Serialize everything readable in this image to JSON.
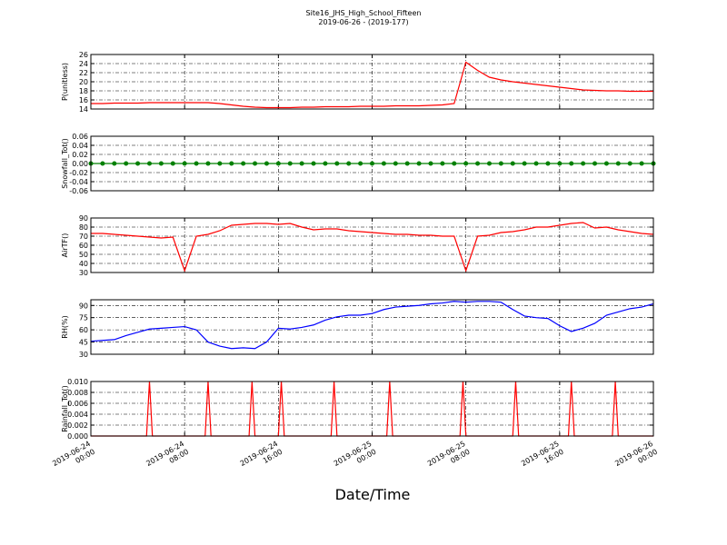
{
  "title": "Site16_JHS_High_School_Fifteen",
  "subtitle": "2019-06-26 - (2019-177)",
  "xlabel": "Date/Time",
  "x_axis": {
    "xlim": [
      "2019-06-24 00:00",
      "2019-06-26 00:00"
    ],
    "xticks": [
      {
        "value": "2019-06-24 00:00",
        "label": [
          "2019-06-24",
          "00:00"
        ]
      },
      {
        "value": "2019-06-24 08:00",
        "label": [
          "2019-06-24",
          "08:00"
        ]
      },
      {
        "value": "2019-06-24 16:00",
        "label": [
          "2019-06-24",
          "16:00"
        ]
      },
      {
        "value": "2019-06-25 00:00",
        "label": [
          "2019-06-25",
          "00:00"
        ]
      },
      {
        "value": "2019-06-25 08:00",
        "label": [
          "2019-06-25",
          "08:00"
        ]
      },
      {
        "value": "2019-06-25 16:00",
        "label": [
          "2019-06-25",
          "16:00"
        ]
      },
      {
        "value": "2019-06-26 00:00",
        "label": [
          "2019-06-26",
          "00:00"
        ]
      }
    ],
    "grid": true
  },
  "chart_data": [
    {
      "type": "line",
      "ylabel": "P(unitless)",
      "color": "#ff0000",
      "grid": true,
      "ylim": [
        14,
        26
      ],
      "yticks": [
        14,
        16,
        18,
        20,
        22,
        24,
        26
      ],
      "x": [
        "2019-06-24 00:00",
        "2019-06-24 01:00",
        "2019-06-24 02:00",
        "2019-06-24 03:00",
        "2019-06-24 04:00",
        "2019-06-24 05:00",
        "2019-06-24 06:00",
        "2019-06-24 07:00",
        "2019-06-24 08:00",
        "2019-06-24 09:00",
        "2019-06-24 10:00",
        "2019-06-24 11:00",
        "2019-06-24 12:00",
        "2019-06-24 13:00",
        "2019-06-24 14:00",
        "2019-06-24 15:00",
        "2019-06-24 16:00",
        "2019-06-24 17:00",
        "2019-06-24 18:00",
        "2019-06-24 19:00",
        "2019-06-24 20:00",
        "2019-06-24 21:00",
        "2019-06-24 22:00",
        "2019-06-24 23:00",
        "2019-06-25 00:00",
        "2019-06-25 01:00",
        "2019-06-25 02:00",
        "2019-06-25 03:00",
        "2019-06-25 04:00",
        "2019-06-25 05:00",
        "2019-06-25 06:00",
        "2019-06-25 07:00",
        "2019-06-25 08:00",
        "2019-06-25 09:00",
        "2019-06-25 10:00",
        "2019-06-25 11:00",
        "2019-06-25 12:00",
        "2019-06-25 13:00",
        "2019-06-25 14:00",
        "2019-06-25 15:00",
        "2019-06-25 16:00",
        "2019-06-25 17:00",
        "2019-06-25 18:00",
        "2019-06-25 19:00",
        "2019-06-25 20:00",
        "2019-06-25 21:00",
        "2019-06-25 22:00",
        "2019-06-25 23:00",
        "2019-06-26 00:00"
      ],
      "values": [
        15.2,
        15.2,
        15.3,
        15.3,
        15.3,
        15.4,
        15.4,
        15.4,
        15.4,
        15.4,
        15.4,
        15.2,
        14.9,
        14.6,
        14.4,
        14.3,
        14.3,
        14.3,
        14.4,
        14.4,
        14.5,
        14.5,
        14.5,
        14.6,
        14.6,
        14.6,
        14.7,
        14.7,
        14.7,
        14.8,
        14.9,
        15.2,
        24.3,
        22.5,
        21.0,
        20.4,
        20.0,
        19.7,
        19.4,
        19.1,
        18.8,
        18.5,
        18.2,
        18.1,
        18.0,
        18.0,
        17.9,
        17.9,
        17.9
      ]
    },
    {
      "type": "line",
      "markers": true,
      "ylabel": "Snowfall_Tot()",
      "color": "#008000",
      "grid": true,
      "ylim": [
        -0.06,
        0.06
      ],
      "yticks": [
        -0.06,
        -0.04,
        -0.02,
        {
          "value": 0,
          "label": "0.00"
        },
        0.02,
        0.04,
        0.06
      ],
      "x": [
        "2019-06-24 00:00",
        "2019-06-24 01:00",
        "2019-06-24 02:00",
        "2019-06-24 03:00",
        "2019-06-24 04:00",
        "2019-06-24 05:00",
        "2019-06-24 06:00",
        "2019-06-24 07:00",
        "2019-06-24 08:00",
        "2019-06-24 09:00",
        "2019-06-24 10:00",
        "2019-06-24 11:00",
        "2019-06-24 12:00",
        "2019-06-24 13:00",
        "2019-06-24 14:00",
        "2019-06-24 15:00",
        "2019-06-24 16:00",
        "2019-06-24 17:00",
        "2019-06-24 18:00",
        "2019-06-24 19:00",
        "2019-06-24 20:00",
        "2019-06-24 21:00",
        "2019-06-24 22:00",
        "2019-06-24 23:00",
        "2019-06-25 00:00",
        "2019-06-25 01:00",
        "2019-06-25 02:00",
        "2019-06-25 03:00",
        "2019-06-25 04:00",
        "2019-06-25 05:00",
        "2019-06-25 06:00",
        "2019-06-25 07:00",
        "2019-06-25 08:00",
        "2019-06-25 09:00",
        "2019-06-25 10:00",
        "2019-06-25 11:00",
        "2019-06-25 12:00",
        "2019-06-25 13:00",
        "2019-06-25 14:00",
        "2019-06-25 15:00",
        "2019-06-25 16:00",
        "2019-06-25 17:00",
        "2019-06-25 18:00",
        "2019-06-25 19:00",
        "2019-06-25 20:00",
        "2019-06-25 21:00",
        "2019-06-25 22:00",
        "2019-06-25 23:00",
        "2019-06-26 00:00"
      ],
      "values": [
        0,
        0,
        0,
        0,
        0,
        0,
        0,
        0,
        0,
        0,
        0,
        0,
        0,
        0,
        0,
        0,
        0,
        0,
        0,
        0,
        0,
        0,
        0,
        0,
        0,
        0,
        0,
        0,
        0,
        0,
        0,
        0,
        0,
        0,
        0,
        0,
        0,
        0,
        0,
        0,
        0,
        0,
        0,
        0,
        0,
        0,
        0,
        0,
        0
      ]
    },
    {
      "type": "line",
      "ylabel": "AirTF()",
      "color": "#ff0000",
      "grid": true,
      "ylim": [
        30,
        90
      ],
      "yticks": [
        30,
        40,
        50,
        60,
        70,
        80,
        90
      ],
      "x": [
        "2019-06-24 00:00",
        "2019-06-24 01:00",
        "2019-06-24 02:00",
        "2019-06-24 03:00",
        "2019-06-24 04:00",
        "2019-06-24 05:00",
        "2019-06-24 06:00",
        "2019-06-24 07:00",
        "2019-06-24 08:00",
        "2019-06-24 09:00",
        "2019-06-24 10:00",
        "2019-06-24 11:00",
        "2019-06-24 12:00",
        "2019-06-24 13:00",
        "2019-06-24 14:00",
        "2019-06-24 15:00",
        "2019-06-24 16:00",
        "2019-06-24 17:00",
        "2019-06-24 18:00",
        "2019-06-24 19:00",
        "2019-06-24 20:00",
        "2019-06-24 21:00",
        "2019-06-24 22:00",
        "2019-06-24 23:00",
        "2019-06-25 00:00",
        "2019-06-25 01:00",
        "2019-06-25 02:00",
        "2019-06-25 03:00",
        "2019-06-25 04:00",
        "2019-06-25 05:00",
        "2019-06-25 06:00",
        "2019-06-25 07:00",
        "2019-06-25 08:00",
        "2019-06-25 09:00",
        "2019-06-25 10:00",
        "2019-06-25 11:00",
        "2019-06-25 12:00",
        "2019-06-25 13:00",
        "2019-06-25 14:00",
        "2019-06-25 15:00",
        "2019-06-25 16:00",
        "2019-06-25 17:00",
        "2019-06-25 18:00",
        "2019-06-25 19:00",
        "2019-06-25 20:00",
        "2019-06-25 21:00",
        "2019-06-25 22:00",
        "2019-06-25 23:00",
        "2019-06-26 00:00"
      ],
      "values": [
        73,
        73,
        72,
        71,
        70,
        69,
        68,
        69,
        32,
        70,
        72,
        76,
        82,
        83,
        84,
        84,
        83,
        84,
        80,
        77,
        78,
        78,
        76,
        75,
        74,
        73,
        72,
        72,
        71,
        71,
        70,
        70,
        32,
        70,
        71,
        74,
        75,
        77,
        80,
        80,
        82,
        84,
        85,
        79,
        80,
        77,
        75,
        73,
        72
      ]
    },
    {
      "type": "line",
      "ylabel": "RH(%)",
      "color": "#0000ff",
      "grid": true,
      "ylim": [
        30,
        97
      ],
      "yticks": [
        30,
        45,
        60,
        75,
        90
      ],
      "x": [
        "2019-06-24 00:00",
        "2019-06-24 01:00",
        "2019-06-24 02:00",
        "2019-06-24 03:00",
        "2019-06-24 04:00",
        "2019-06-24 05:00",
        "2019-06-24 06:00",
        "2019-06-24 07:00",
        "2019-06-24 08:00",
        "2019-06-24 09:00",
        "2019-06-24 10:00",
        "2019-06-24 11:00",
        "2019-06-24 12:00",
        "2019-06-24 13:00",
        "2019-06-24 14:00",
        "2019-06-24 15:00",
        "2019-06-24 16:00",
        "2019-06-24 17:00",
        "2019-06-24 18:00",
        "2019-06-24 19:00",
        "2019-06-24 20:00",
        "2019-06-24 21:00",
        "2019-06-24 22:00",
        "2019-06-24 23:00",
        "2019-06-25 00:00",
        "2019-06-25 01:00",
        "2019-06-25 02:00",
        "2019-06-25 03:00",
        "2019-06-25 04:00",
        "2019-06-25 05:00",
        "2019-06-25 06:00",
        "2019-06-25 07:00",
        "2019-06-25 08:00",
        "2019-06-25 09:00",
        "2019-06-25 10:00",
        "2019-06-25 11:00",
        "2019-06-25 12:00",
        "2019-06-25 13:00",
        "2019-06-25 14:00",
        "2019-06-25 15:00",
        "2019-06-25 16:00",
        "2019-06-25 17:00",
        "2019-06-25 18:00",
        "2019-06-25 19:00",
        "2019-06-25 20:00",
        "2019-06-25 21:00",
        "2019-06-25 22:00",
        "2019-06-25 23:00",
        "2019-06-26 00:00"
      ],
      "values": [
        46,
        47,
        48,
        53,
        57,
        61,
        62,
        63,
        64,
        60,
        45,
        40,
        37,
        38,
        37,
        45,
        62,
        61,
        63,
        66,
        72,
        76,
        78,
        78,
        80,
        85,
        88,
        89,
        90,
        92,
        93,
        95,
        94,
        95,
        95,
        94,
        85,
        77,
        75,
        74,
        65,
        58,
        62,
        68,
        78,
        82,
        86,
        88,
        92
      ]
    },
    {
      "type": "line",
      "ylabel": "Rainfall_Tot()",
      "color": "#ff0000",
      "grid": true,
      "ylim": [
        0,
        0.01
      ],
      "yticks": [
        {
          "value": 0,
          "label": "0.000"
        },
        {
          "value": 0.002,
          "label": "0.002"
        },
        {
          "value": 0.004,
          "label": "0.004"
        },
        {
          "value": 0.006,
          "label": "0.006"
        },
        {
          "value": 0.008,
          "label": "0.008"
        },
        {
          "value": 0.01,
          "label": "0.010"
        }
      ],
      "x": [
        "2019-06-24 00:00",
        "2019-06-24 04:45",
        "2019-06-24 05:00",
        "2019-06-24 05:15",
        "2019-06-24 09:45",
        "2019-06-24 10:00",
        "2019-06-24 10:15",
        "2019-06-24 13:30",
        "2019-06-24 13:45",
        "2019-06-24 14:00",
        "2019-06-24 16:00",
        "2019-06-24 16:15",
        "2019-06-24 16:30",
        "2019-06-24 20:30",
        "2019-06-24 20:45",
        "2019-06-24 21:00",
        "2019-06-25 01:15",
        "2019-06-25 01:30",
        "2019-06-25 01:45",
        "2019-06-25 07:30",
        "2019-06-25 07:45",
        "2019-06-25 08:00",
        "2019-06-25 12:00",
        "2019-06-25 12:15",
        "2019-06-25 12:30",
        "2019-06-25 16:45",
        "2019-06-25 17:00",
        "2019-06-25 17:15",
        "2019-06-25 20:30",
        "2019-06-25 20:45",
        "2019-06-25 21:00",
        "2019-06-26 00:00"
      ],
      "values": [
        0,
        0,
        0.01,
        0,
        0,
        0.01,
        0,
        0,
        0.01,
        0,
        0,
        0.01,
        0,
        0,
        0.01,
        0,
        0,
        0.01,
        0,
        0,
        0.01,
        0,
        0,
        0.01,
        0,
        0,
        0.01,
        0,
        0,
        0.01,
        0,
        0
      ]
    }
  ]
}
